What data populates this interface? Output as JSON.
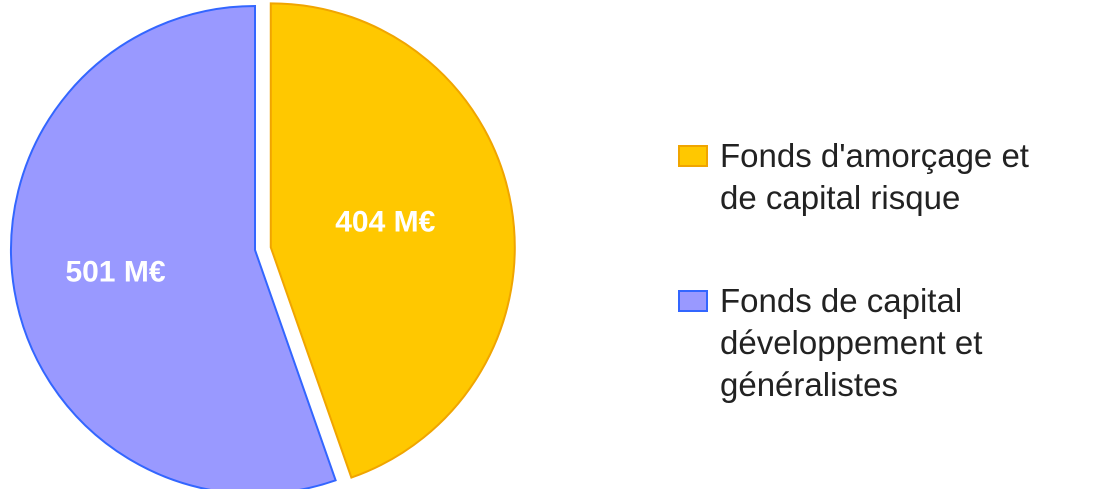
{
  "chart_data": {
    "type": "pie",
    "series": [
      {
        "name": "Fonds d'amorçage et de capital risque",
        "color": "#ffc800",
        "values": [
          404
        ],
        "value_labels": [
          "404 M€"
        ]
      },
      {
        "name": "Fonds de capital développement et généralistes",
        "color": "#9999ff",
        "values": [
          501
        ],
        "value_labels": [
          "501 M€"
        ]
      }
    ]
  }
}
